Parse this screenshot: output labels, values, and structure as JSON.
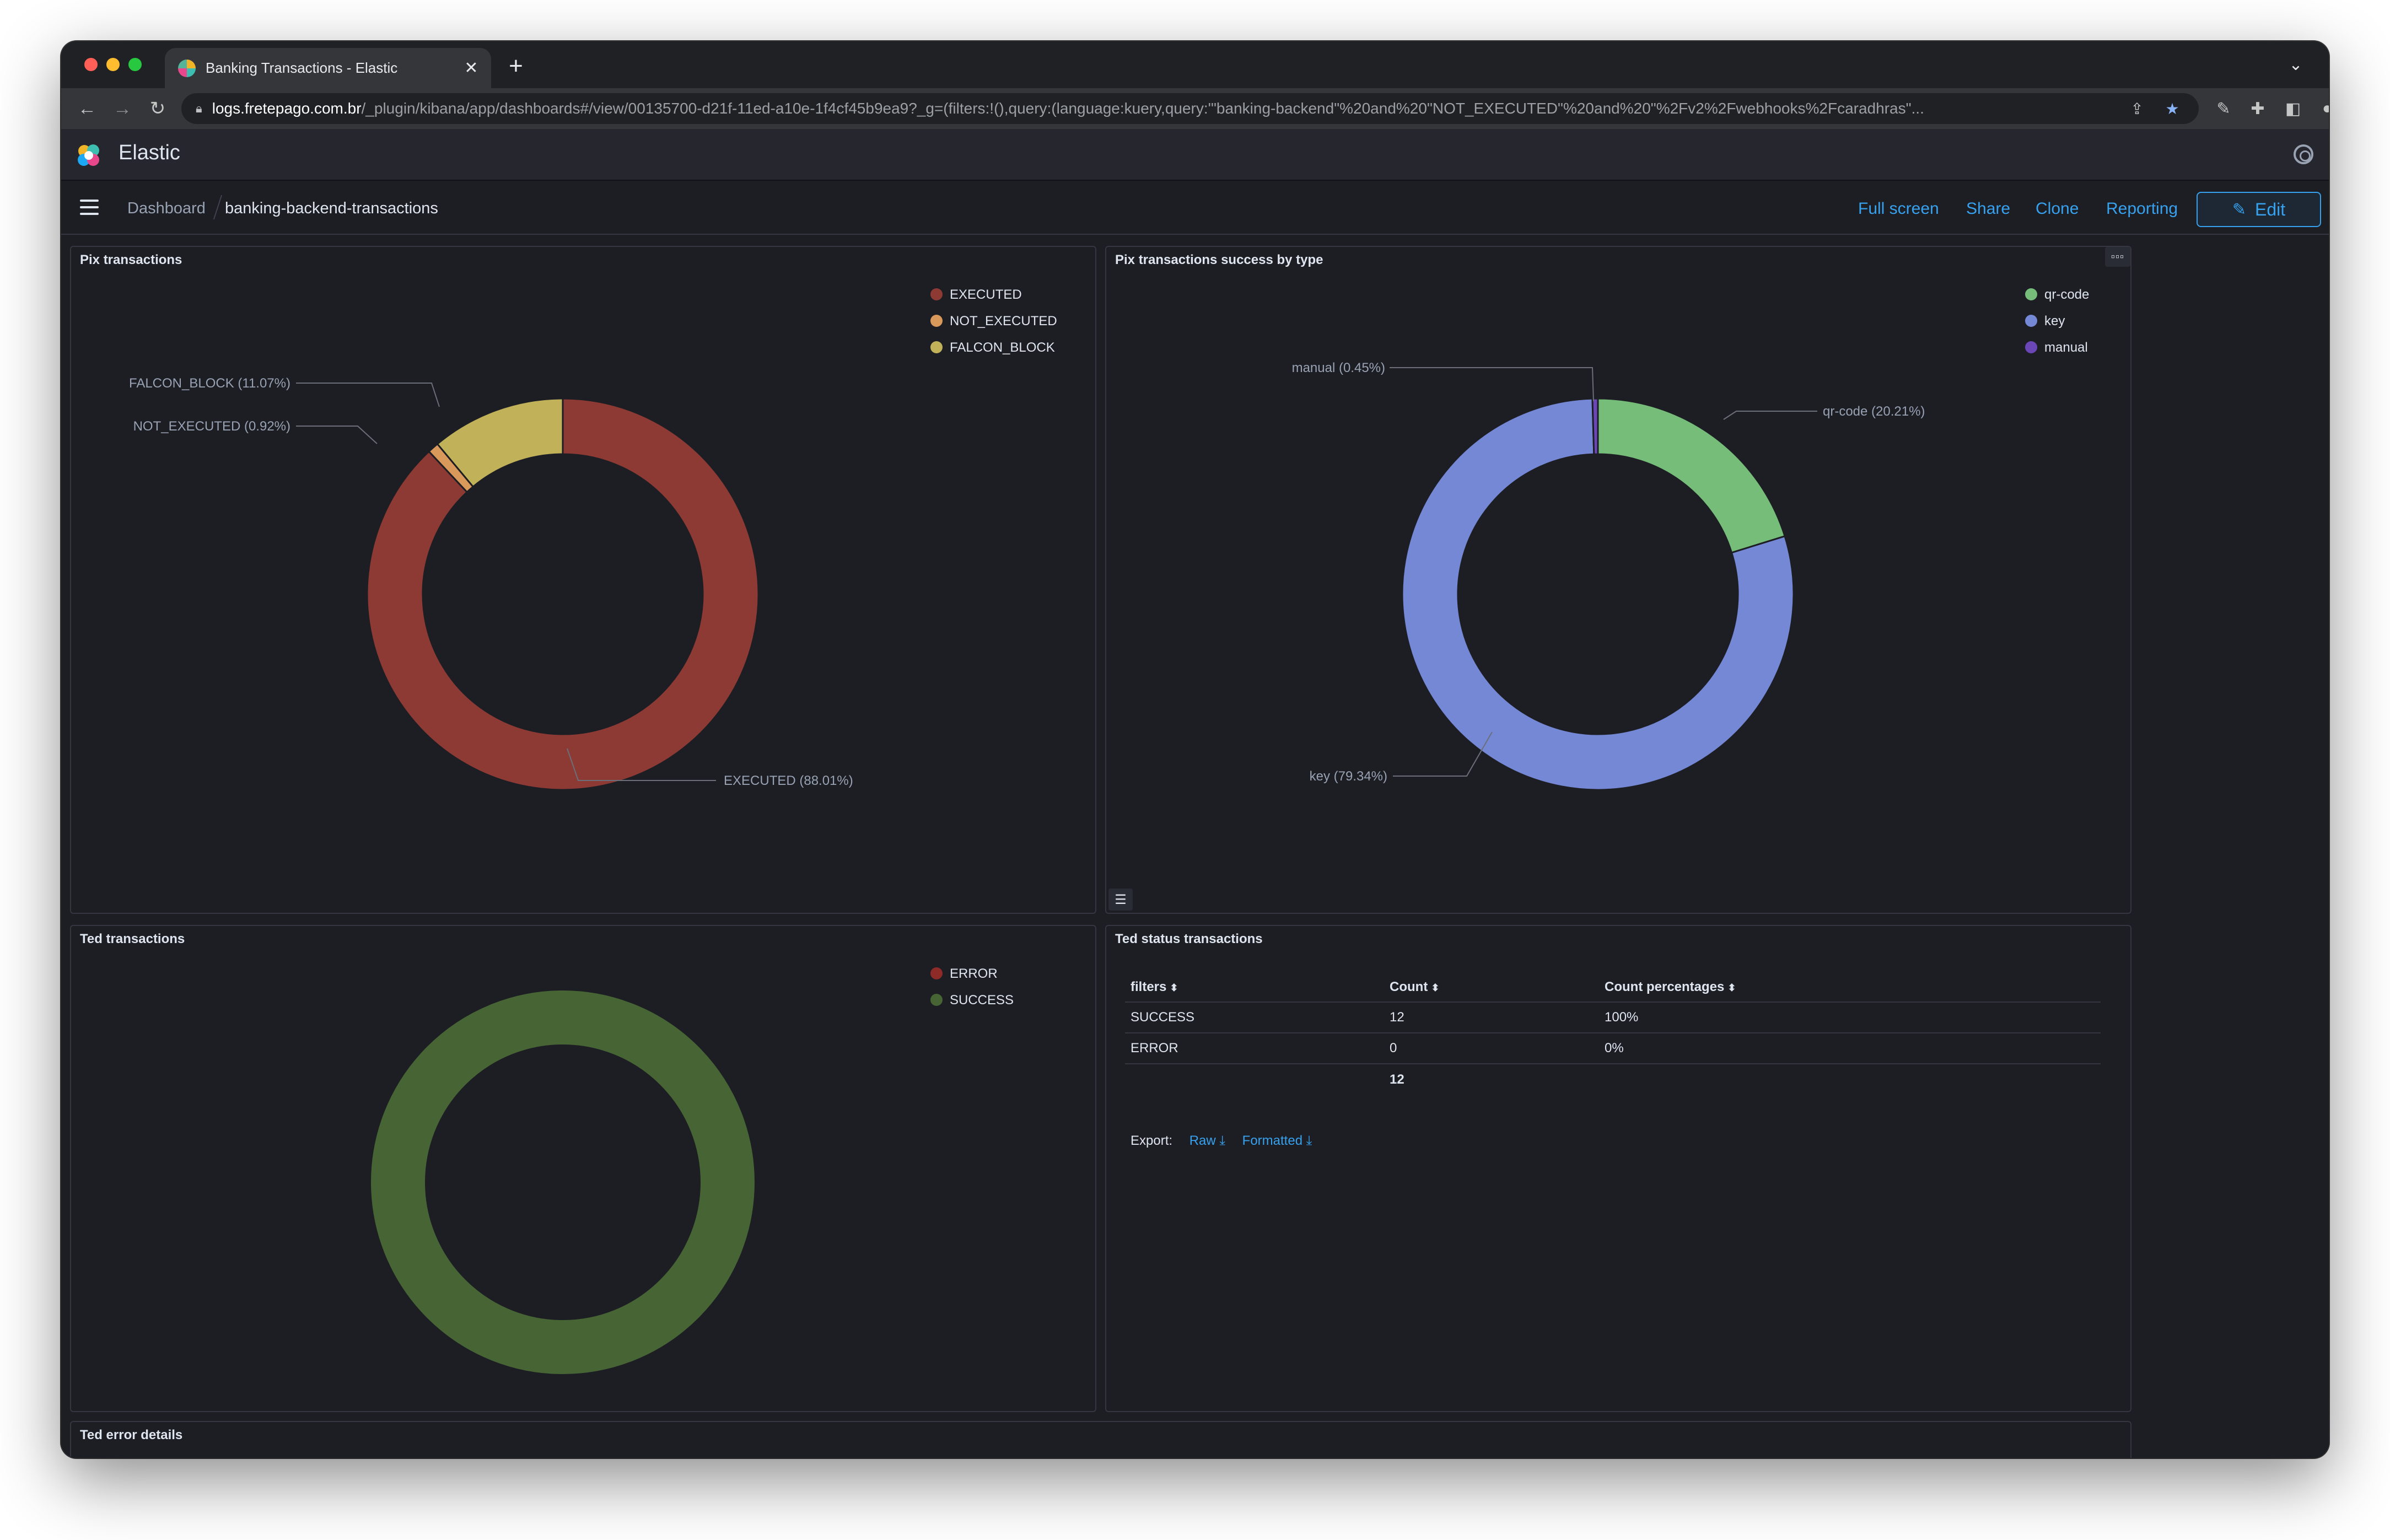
{
  "browser": {
    "tab_title": "Banking Transactions - Elastic",
    "tab_close": "✕",
    "new_tab": "+",
    "url_host": "logs.fretepago.com.br",
    "url_path": "/_plugin/kibana/app/dashboards#/view/00135700-d21f-11ed-a10e-1f4cf45b9ea9?_g=(filters:!(),query:(language:kuery,query:'\"banking-backend\"%20and%20\"NOT_EXECUTED\"%20and%20\"%2Fv2%2Fwebhooks%2Fcaradhras\"..."
  },
  "app": {
    "brand": "Elastic",
    "breadcrumb_parent": "Dashboard",
    "breadcrumb_current": "banking-backend-transactions",
    "nav": {
      "full_screen": "Full screen",
      "share": "Share",
      "clone": "Clone",
      "reporting": "Reporting",
      "edit": "Edit"
    },
    "accent": "#36a2ef"
  },
  "panels": {
    "pix": {
      "title": "Pix transactions",
      "legend": [
        {
          "label": "EXECUTED",
          "color": "#8e3a34"
        },
        {
          "label": "NOT_EXECUTED",
          "color": "#d9995b"
        },
        {
          "label": "FALCON_BLOCK",
          "color": "#c1b25a"
        }
      ],
      "labels": {
        "falcon": "FALCON_BLOCK (11.07%)",
        "not_executed": "NOT_EXECUTED (0.92%)",
        "executed": "EXECUTED (88.01%)"
      }
    },
    "pix_type": {
      "title": "Pix transactions success by type",
      "options_icon": "▫▫▫",
      "legend": [
        {
          "label": "qr-code",
          "color": "#75bd79"
        },
        {
          "label": "key",
          "color": "#7588d6"
        },
        {
          "label": "manual",
          "color": "#6a46b7"
        }
      ],
      "labels": {
        "manual": "manual (0.45%)",
        "qr_code": "qr-code (20.21%)",
        "key": "key (79.34%)"
      }
    },
    "ted": {
      "title": "Ted transactions",
      "legend": [
        {
          "label": "ERROR",
          "color": "#8e2a27"
        },
        {
          "label": "SUCCESS",
          "color": "#466434"
        }
      ]
    },
    "ted_status": {
      "title": "Ted status transactions",
      "columns": [
        "filters",
        "Count",
        "Count percentages"
      ],
      "rows": [
        {
          "filter": "SUCCESS",
          "count": "12",
          "pct": "100%"
        },
        {
          "filter": "ERROR",
          "count": "0",
          "pct": "0%"
        }
      ],
      "total": "12",
      "export_label": "Export:",
      "export_raw": "Raw",
      "export_formatted": "Formatted"
    },
    "ted_errors": {
      "title": "Ted error details"
    }
  },
  "chart_data": [
    {
      "type": "pie",
      "title": "Pix transactions",
      "categories": [
        "EXECUTED",
        "NOT_EXECUTED",
        "FALCON_BLOCK"
      ],
      "values": [
        88.01,
        0.92,
        11.07
      ],
      "legend": "top-right"
    },
    {
      "type": "pie",
      "title": "Pix transactions success by type",
      "categories": [
        "qr-code",
        "key",
        "manual"
      ],
      "values": [
        20.21,
        79.34,
        0.45
      ],
      "legend": "top-right"
    },
    {
      "type": "pie",
      "title": "Ted transactions",
      "categories": [
        "ERROR",
        "SUCCESS"
      ],
      "values": [
        0,
        100
      ],
      "legend": "top-right"
    }
  ]
}
